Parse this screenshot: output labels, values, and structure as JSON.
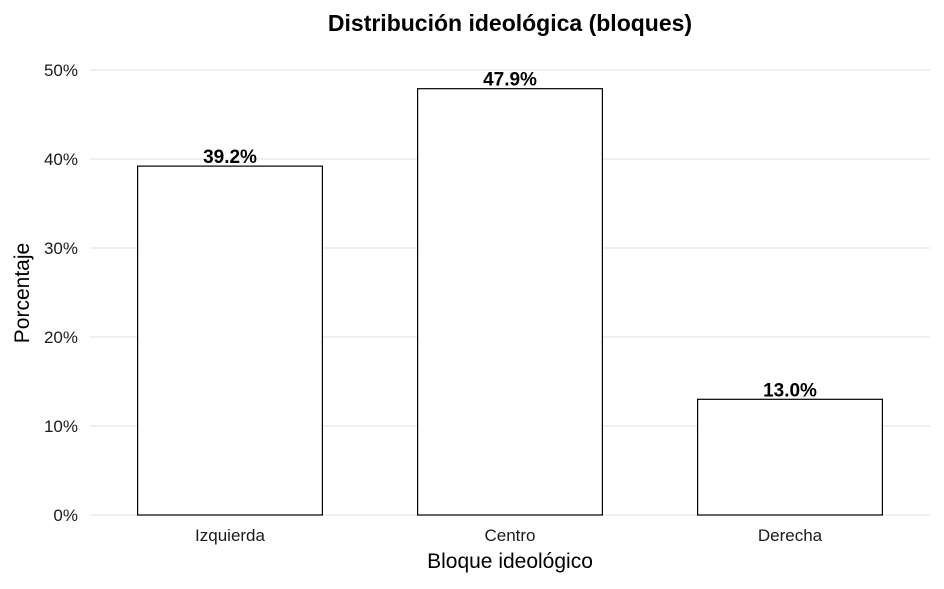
{
  "chart_data": {
    "type": "bar",
    "title": "Distribución ideológica (bloques)",
    "xlabel": "Bloque ideológico",
    "ylabel": "Porcentaje",
    "categories": [
      "Izquierda",
      "Centro",
      "Derecha"
    ],
    "values": [
      39.2,
      47.9,
      13.0
    ],
    "value_labels": [
      "39.2%",
      "47.9%",
      "13.0%"
    ],
    "yticks": [
      0,
      10,
      20,
      30,
      40,
      50
    ],
    "ytick_labels": [
      "0%",
      "10%",
      "20%",
      "30%",
      "40%",
      "50%"
    ],
    "ylim": [
      0,
      50
    ],
    "grid": "horizontal",
    "bar_fill": "#ffffff",
    "bar_stroke": "#000000",
    "grid_color": "#ebebeb"
  }
}
